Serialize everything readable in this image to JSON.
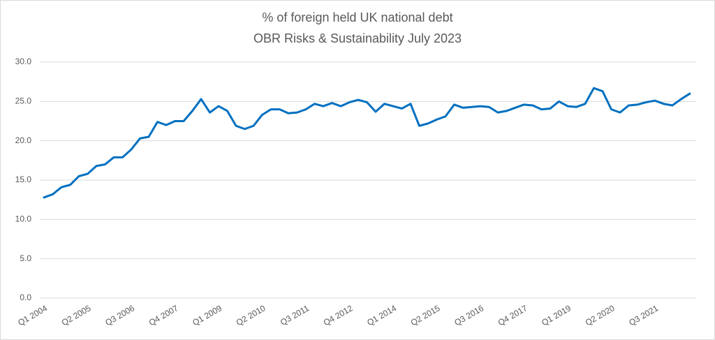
{
  "chart_data": {
    "type": "line",
    "title": "% of foreign held UK national debt",
    "subtitle": "OBR Risks & Sustainability July 2023",
    "categories": [
      "Q1 2004",
      null,
      null,
      null,
      null,
      "Q2 2005",
      null,
      null,
      null,
      null,
      "Q3 2006",
      null,
      null,
      null,
      null,
      "Q4 2007",
      null,
      null,
      null,
      null,
      "Q1 2009",
      null,
      null,
      null,
      null,
      "Q2 2010",
      null,
      null,
      null,
      null,
      "Q3 2011",
      null,
      null,
      null,
      null,
      "Q4 2012",
      null,
      null,
      null,
      null,
      "Q1 2014",
      null,
      null,
      null,
      null,
      "Q2 2015",
      null,
      null,
      null,
      null,
      "Q3 2016",
      null,
      null,
      null,
      null,
      "Q4 2017",
      null,
      null,
      null,
      null,
      "Q1 2019",
      null,
      null,
      null,
      null,
      "Q2 2020",
      null,
      null,
      null,
      null,
      "Q3 2021",
      null,
      null,
      null,
      null
    ],
    "series": [
      {
        "name": "% foreign held",
        "color": "#0070c0",
        "values": [
          12.8,
          13.2,
          14.1,
          14.4,
          15.5,
          15.8,
          16.8,
          17.0,
          17.9,
          17.9,
          18.9,
          20.3,
          20.5,
          22.4,
          22.0,
          22.5,
          22.5,
          23.8,
          25.3,
          23.6,
          24.4,
          23.8,
          21.9,
          21.5,
          21.9,
          23.3,
          24.0,
          24.0,
          23.5,
          23.6,
          24.0,
          24.7,
          24.4,
          24.8,
          24.4,
          24.9,
          25.2,
          24.9,
          23.7,
          24.7,
          24.4,
          24.1,
          24.7,
          21.9,
          22.2,
          22.7,
          23.1,
          24.6,
          24.2,
          24.3,
          24.4,
          24.3,
          23.6,
          23.8,
          24.2,
          24.6,
          24.5,
          24.0,
          24.1,
          25.0,
          24.4,
          24.3,
          24.7,
          26.7,
          26.3,
          24.0,
          23.6,
          24.5,
          24.6,
          24.9,
          25.1,
          24.7,
          24.5,
          25.3,
          26.0
        ]
      }
    ],
    "ylim": [
      0,
      30
    ],
    "yticks": [
      {
        "value": 0,
        "label": "0.0"
      },
      {
        "value": 5,
        "label": "5.0"
      },
      {
        "value": 10,
        "label": "10.0"
      },
      {
        "value": 15,
        "label": "15.0"
      },
      {
        "value": 20,
        "label": "20.0"
      },
      {
        "value": 25,
        "label": "25.0"
      },
      {
        "value": 30,
        "label": "30.0"
      }
    ],
    "grid": true
  }
}
